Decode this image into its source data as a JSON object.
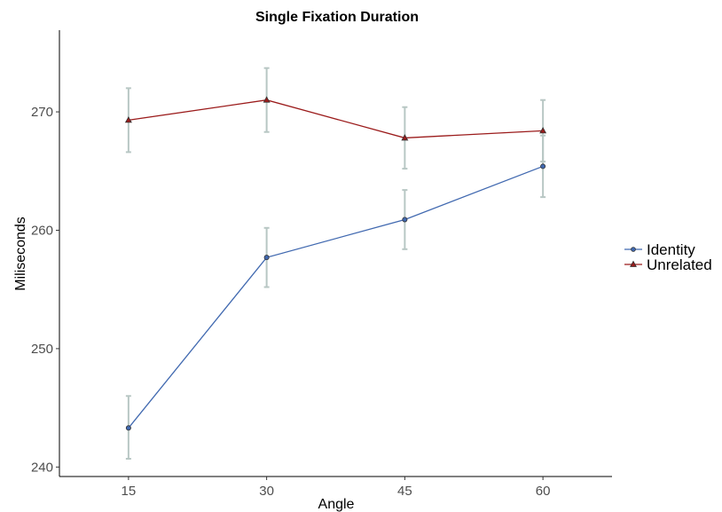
{
  "chart_data": {
    "type": "line",
    "title": "Single Fixation Duration",
    "xlabel": "Angle",
    "ylabel": "Miliseconds",
    "x": [
      15,
      30,
      45,
      60
    ],
    "x_tick_labels": [
      "15",
      "30",
      "45",
      "60"
    ],
    "y_ticks": [
      240,
      250,
      260,
      270
    ],
    "y_tick_labels": [
      "240",
      "250",
      "260",
      "270"
    ],
    "xlim": [
      7.5,
      67.5
    ],
    "ylim": [
      239.2,
      276.9
    ],
    "grid": false,
    "legend_position": "right",
    "error_bar_color": "#b8c7c4",
    "series": [
      {
        "name": "Identity",
        "color": "#4169b0",
        "marker": "circle",
        "values": [
          243.3,
          257.7,
          260.9,
          265.4
        ],
        "err_low": [
          240.7,
          255.2,
          258.4,
          262.8
        ],
        "err_high": [
          246.0,
          260.2,
          263.4,
          268.0
        ]
      },
      {
        "name": "Unrelated",
        "color": "#9b1b1b",
        "marker": "triangle",
        "values": [
          269.3,
          271.0,
          267.8,
          268.4
        ],
        "err_low": [
          266.6,
          268.3,
          265.2,
          265.8
        ],
        "err_high": [
          272.0,
          273.7,
          270.4,
          271.0
        ]
      }
    ]
  }
}
